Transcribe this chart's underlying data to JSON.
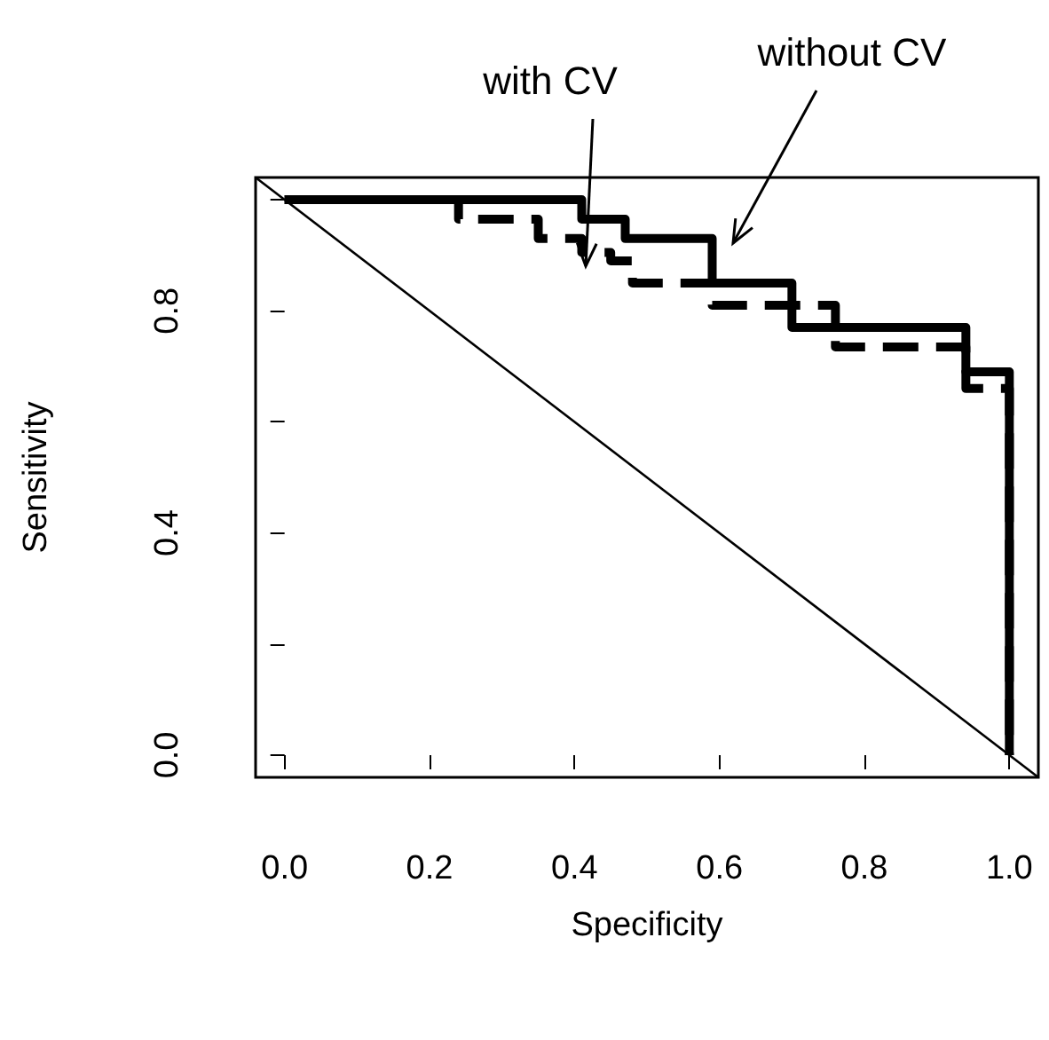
{
  "chart_data": {
    "type": "step",
    "xlabel": "Specificity",
    "ylabel": "Sensitivity",
    "xlim": [
      -0.04,
      1.04
    ],
    "ylim": [
      -0.04,
      1.04
    ],
    "xticks": [
      {
        "value": 0,
        "label": "0.0"
      },
      {
        "value": 0.2,
        "label": "0.2"
      },
      {
        "value": 0.4,
        "label": "0.4"
      },
      {
        "value": 0.6,
        "label": "0.6"
      },
      {
        "value": 0.8,
        "label": "0.8"
      },
      {
        "value": 1,
        "label": "1.0"
      }
    ],
    "yticks": [
      {
        "value": 0,
        "label": "0.0"
      },
      {
        "value": 0.2,
        "label": null
      },
      {
        "value": 0.4,
        "label": "0.4"
      },
      {
        "value": 0.6,
        "label": null
      },
      {
        "value": 0.8,
        "label": "0.8"
      },
      {
        "value": 1,
        "label": null
      }
    ],
    "grid": false,
    "marker": "none",
    "series": [
      {
        "color": "#000000",
        "line_style": "solid",
        "x": [
          0,
          0.41,
          0.47,
          0.59,
          0.7,
          0.94,
          1.0
        ],
        "values": [
          1,
          0.965,
          0.93,
          0.85,
          0.77,
          0.69,
          0
        ]
      },
      {
        "color": "#000000",
        "line_style": "dashed",
        "x": [
          0,
          0.24,
          0.35,
          0.41,
          0.45,
          0.48,
          0.59,
          0.76,
          0.94,
          1.0
        ],
        "values": [
          1,
          0.965,
          0.93,
          0.905,
          0.89,
          0.85,
          0.81,
          0.735,
          0.66,
          0
        ]
      },
      {
        "type": "line",
        "color": "#000000",
        "line_style": "solid",
        "x": [
          -0.04,
          1.04
        ],
        "values": [
          1.04,
          -0.04
        ]
      }
    ],
    "annotations": [
      "with CV",
      "without CV"
    ]
  }
}
